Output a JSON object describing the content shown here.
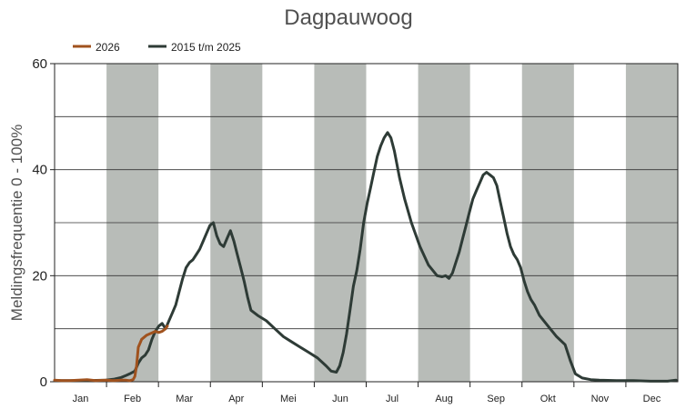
{
  "chart_data": {
    "type": "line",
    "title": "Dagpauwoog",
    "ylabel": "Meldingsfrequentie 0 - 100%",
    "xlabel": "",
    "ylim": [
      0,
      60
    ],
    "yticks": [
      0,
      20,
      40,
      60
    ],
    "grid": true,
    "legend_position": "top-left",
    "months": [
      "Jan",
      "Feb",
      "Mar",
      "Apr",
      "Mei",
      "Jun",
      "Jul",
      "Aug",
      "Sep",
      "Okt",
      "Nov",
      "Dec"
    ],
    "shaded_months": [
      "Feb",
      "Apr",
      "Jun",
      "Aug",
      "Okt",
      "Dec"
    ],
    "series": [
      {
        "name": "2026",
        "color": "#a0521e",
        "x_day": [
          1,
          5,
          10,
          15,
          20,
          25,
          31,
          35,
          40,
          43,
          45,
          47,
          48,
          49,
          50,
          52,
          55,
          58,
          60,
          62,
          64,
          66,
          67
        ],
        "y": [
          0.3,
          0.2,
          0.2,
          0.3,
          0.4,
          0.2,
          0.3,
          0.2,
          0.3,
          0.3,
          0.2,
          0.4,
          1.0,
          3.0,
          6.5,
          8.0,
          8.8,
          9.2,
          9.5,
          9.3,
          9.5,
          10.0,
          10.5
        ]
      },
      {
        "name": "2015 t/m 2025",
        "color": "#2e3b36",
        "x_day": [
          1,
          10,
          20,
          31,
          36,
          40,
          43,
          45,
          48,
          50,
          52,
          54,
          56,
          58,
          60,
          62,
          64,
          66,
          68,
          70,
          72,
          74,
          76,
          78,
          80,
          82,
          84,
          86,
          88,
          90,
          92,
          94,
          96,
          98,
          100,
          102,
          104,
          106,
          108,
          110,
          112,
          114,
          116,
          120,
          125,
          130,
          135,
          140,
          145,
          150,
          155,
          160,
          163,
          166,
          168,
          170,
          172,
          174,
          176,
          178,
          180,
          182,
          184,
          186,
          188,
          190,
          192,
          194,
          196,
          198,
          200,
          203,
          206,
          210,
          215,
          220,
          225,
          228,
          230,
          232,
          234,
          236,
          238,
          240,
          242,
          244,
          246,
          248,
          250,
          252,
          254,
          256,
          258,
          260,
          262,
          264,
          266,
          268,
          270,
          272,
          274,
          276,
          278,
          280,
          282,
          285,
          290,
          295,
          300,
          303,
          306,
          310,
          315,
          320,
          330,
          340,
          350,
          360,
          365
        ],
        "y": [
          0.2,
          0.2,
          0.2,
          0.3,
          0.5,
          0.8,
          1.2,
          1.5,
          2.0,
          3.5,
          4.5,
          5.0,
          6.0,
          8.0,
          9.5,
          10.5,
          11.0,
          10.0,
          11.5,
          13.0,
          14.5,
          17.0,
          19.5,
          21.5,
          22.5,
          23.0,
          24.0,
          25.0,
          26.5,
          28.0,
          29.5,
          30.0,
          27.5,
          26.0,
          25.5,
          27.0,
          28.5,
          26.5,
          24.0,
          21.5,
          19.0,
          16.0,
          13.5,
          12.5,
          11.5,
          10.0,
          8.5,
          7.5,
          6.5,
          5.5,
          4.5,
          3.0,
          2.0,
          1.8,
          3.0,
          5.5,
          9.0,
          13.5,
          18.0,
          21.0,
          25.0,
          30.0,
          33.5,
          36.5,
          39.5,
          42.5,
          44.5,
          46.0,
          47.0,
          46.0,
          43.5,
          38.5,
          34.5,
          30.0,
          25.5,
          22.0,
          20.0,
          19.8,
          20.0,
          19.5,
          20.5,
          22.5,
          24.5,
          27.0,
          29.5,
          32.0,
          34.5,
          36.0,
          37.5,
          39.0,
          39.5,
          39.0,
          38.5,
          37.0,
          34.0,
          31.0,
          28.0,
          25.5,
          24.0,
          23.0,
          21.5,
          19.0,
          17.0,
          15.5,
          14.5,
          12.5,
          10.5,
          8.5,
          7.0,
          4.0,
          1.5,
          0.7,
          0.4,
          0.3,
          0.2,
          0.2,
          0.1,
          0.1,
          0.3
        ]
      }
    ]
  }
}
